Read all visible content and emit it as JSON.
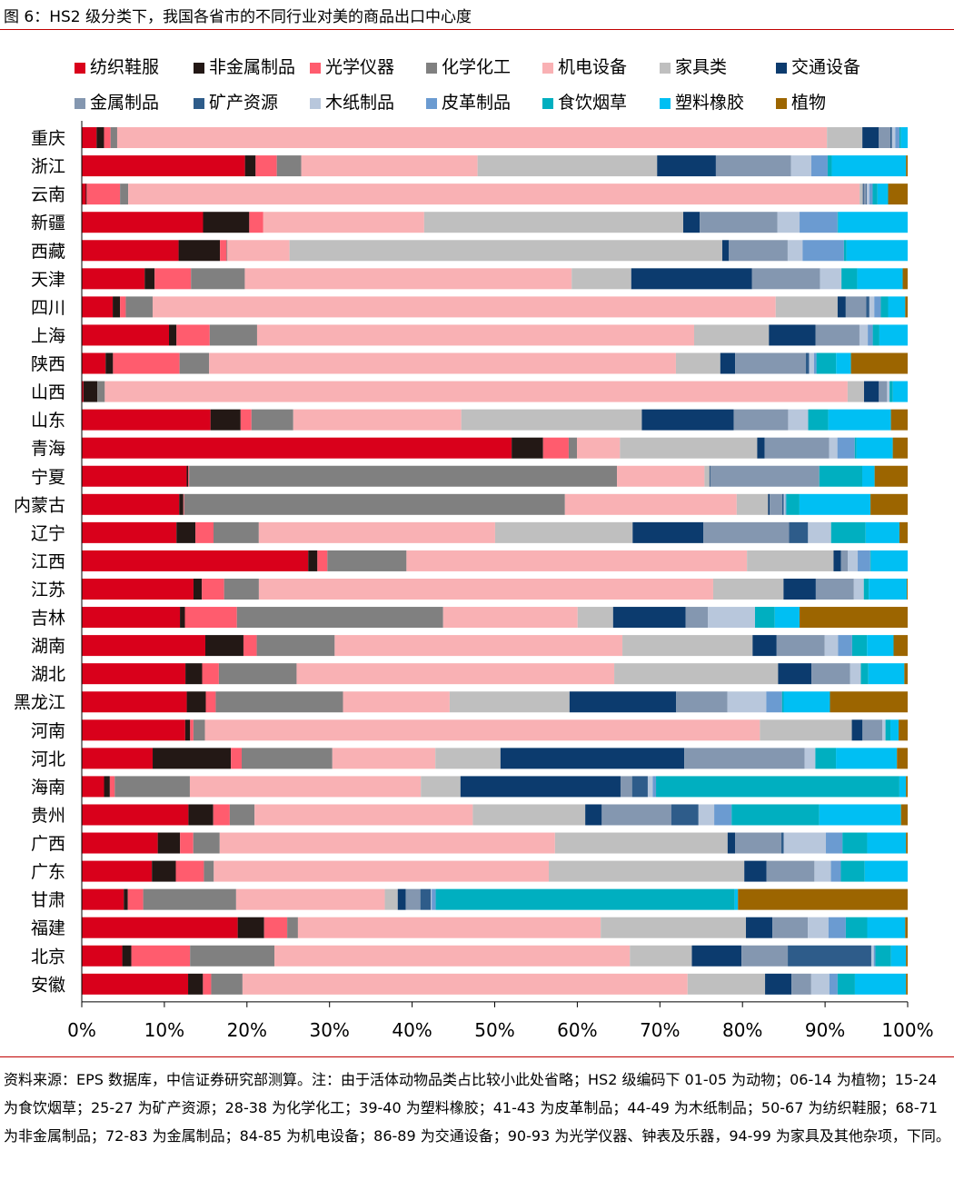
{
  "figure": {
    "title": "图 6：HS2 级分类下，我国各省市的不同行业对美的商品出口中心度",
    "source_note": "资料来源：EPS 数据库，中信证券研究部测算。注：由于活体动物品类占比较小此处省略；HS2 级编码下 01-05 为动物；06-14 为植物；15-24 为食饮烟草；25-27 为矿产资源；28-38 为化学化工；39-40 为塑料橡胶；41-43 为皮革制品；44-49 为木纸制品；50-67 为纺织鞋服；68-71 为非金属制品；72-83 为金属制品；84-85 为机电设备；86-89 为交通设备；90-93 为光学仪器、钟表及乐器，94-99 为家具及其他杂项，下同。"
  },
  "chart_data": {
    "type": "bar",
    "orientation": "horizontal",
    "stacked": true,
    "normalized": true,
    "xlim": [
      0,
      100
    ],
    "xticks": [
      "0%",
      "10%",
      "20%",
      "30%",
      "40%",
      "50%",
      "60%",
      "70%",
      "80%",
      "90%",
      "100%"
    ],
    "legend_position": "top",
    "categories": [
      "重庆",
      "浙江",
      "云南",
      "新疆",
      "西藏",
      "天津",
      "四川",
      "上海",
      "陕西",
      "山西",
      "山东",
      "青海",
      "宁夏",
      "内蒙古",
      "辽宁",
      "江西",
      "江苏",
      "吉林",
      "湖南",
      "湖北",
      "黑龙江",
      "河南",
      "河北",
      "海南",
      "贵州",
      "广西",
      "广东",
      "甘肃",
      "福建",
      "北京",
      "安徽"
    ],
    "series": [
      {
        "name": "纺织鞋服",
        "color": "#d9001b",
        "values": [
          1.8,
          20.0,
          0.5,
          14.7,
          11.7,
          7.6,
          3.8,
          10.5,
          2.9,
          0.2,
          15.4,
          52.0,
          12.7,
          11.8,
          11.5,
          27.2,
          13.5,
          11.9,
          14.9,
          12.4,
          12.7,
          12.6,
          8.6,
          2.7,
          12.9,
          9.2,
          8.5,
          5.2,
          18.9,
          4.9,
          12.9
        ]
      },
      {
        "name": "非金属制品",
        "color": "#231815",
        "values": [
          0.9,
          1.3,
          0.1,
          5.6,
          5.0,
          1.2,
          0.9,
          0.9,
          0.9,
          1.7,
          3.6,
          3.8,
          0.2,
          0.5,
          2.3,
          1.1,
          1.0,
          0.6,
          4.6,
          2.0,
          2.3,
          0.6,
          9.5,
          0.7,
          3.0,
          2.7,
          2.9,
          0.5,
          3.2,
          1.1,
          1.8
        ]
      },
      {
        "name": "光学仪器",
        "color": "#ff5c6e",
        "values": [
          0.8,
          2.6,
          4.1,
          1.7,
          0.8,
          4.4,
          0.7,
          4.0,
          8.1,
          0.0,
          1.3,
          3.1,
          0.1,
          0.1,
          2.2,
          1.2,
          2.7,
          6.3,
          1.6,
          2.0,
          1.2,
          0.4,
          1.3,
          0.6,
          2.0,
          1.6,
          3.4,
          1.9,
          2.8,
          7.1,
          1.0
        ]
      },
      {
        "name": "化学化工",
        "color": "#808080",
        "values": [
          0.8,
          3.0,
          1.0,
          0.0,
          0.1,
          6.5,
          3.3,
          5.7,
          3.6,
          0.9,
          5.0,
          1.0,
          51.8,
          46.1,
          5.5,
          9.5,
          4.2,
          25.0,
          9.4,
          9.3,
          15.4,
          1.4,
          11.0,
          9.1,
          3.0,
          3.2,
          1.2,
          11.5,
          1.3,
          10.2,
          3.8
        ]
      },
      {
        "name": "机电设备",
        "color": "#f9b1b4",
        "values": [
          86.2,
          21.6,
          89.8,
          19.5,
          7.5,
          39.5,
          76.5,
          52.6,
          56.8,
          90.3,
          20.1,
          5.2,
          10.6,
          20.8,
          28.7,
          40.9,
          54.9,
          16.3,
          34.7,
          38.0,
          12.9,
          67.6,
          12.5,
          28.0,
          26.4,
          40.6,
          40.6,
          18.4,
          36.7,
          43.0,
          54.0
        ]
      },
      {
        "name": "家具类",
        "color": "#bfbfbf",
        "values": [
          4.3,
          22.0,
          0.4,
          31.4,
          52.3,
          7.2,
          7.6,
          9.0,
          5.4,
          2.0,
          21.6,
          16.6,
          0.6,
          3.8,
          16.7,
          10.4,
          8.5,
          4.3,
          15.7,
          19.6,
          14.5,
          11.2,
          7.9,
          4.8,
          13.6,
          20.9,
          23.7,
          1.6,
          17.6,
          7.5,
          9.4
        ]
      },
      {
        "name": "交通设备",
        "color": "#0c3b6e",
        "values": [
          2.0,
          7.2,
          0.1,
          2.0,
          0.8,
          14.6,
          1.0,
          5.6,
          1.8,
          1.8,
          11.0,
          0.9,
          0.1,
          0.2,
          8.6,
          0.9,
          3.9,
          8.8,
          2.9,
          4.0,
          12.9,
          1.3,
          22.3,
          19.4,
          2.0,
          0.9,
          2.7,
          1.0,
          3.2,
          6.0,
          3.2
        ]
      },
      {
        "name": "金属制品",
        "color": "#8497b0",
        "values": [
          1.4,
          9.2,
          0.3,
          9.4,
          7.1,
          8.2,
          2.5,
          5.3,
          8.6,
          1.0,
          6.5,
          7.8,
          13.2,
          1.5,
          10.4,
          0.8,
          4.6,
          2.7,
          5.8,
          4.6,
          6.2,
          2.4,
          14.6,
          1.4,
          8.4,
          5.6,
          5.8,
          1.8,
          4.3,
          5.6,
          2.4
        ]
      },
      {
        "name": "矿产资源",
        "color": "#2e5c8a",
        "values": [
          0.2,
          0.0,
          0.1,
          0.0,
          0.0,
          0.0,
          0.4,
          0.0,
          0.4,
          0.0,
          0.0,
          0.0,
          0.0,
          0.2,
          2.3,
          0.0,
          0.0,
          0.0,
          0.0,
          0.0,
          0.0,
          0.0,
          0.0,
          1.9,
          3.3,
          0.3,
          0.0,
          1.3,
          0.0,
          10.1,
          0.0
        ]
      },
      {
        "name": "木纸制品",
        "color": "#b8c7dc",
        "values": [
          0.4,
          2.5,
          0.3,
          2.7,
          1.8,
          2.6,
          0.6,
          1.0,
          0.6,
          0.3,
          2.4,
          1.0,
          0.0,
          0.2,
          2.8,
          1.2,
          1.2,
          5.7,
          1.6,
          1.3,
          4.7,
          0.4,
          1.3,
          0.6,
          1.9,
          5.1,
          2.0,
          0.1,
          2.5,
          0.3,
          2.2
        ]
      },
      {
        "name": "皮革制品",
        "color": "#6b9bd1",
        "values": [
          0.5,
          2.0,
          0.4,
          4.6,
          5.0,
          0.0,
          0.8,
          0.6,
          0.3,
          0.0,
          0.0,
          2.1,
          0.0,
          0.1,
          0.0,
          1.5,
          0.0,
          0.0,
          1.7,
          0.0,
          1.9,
          0.0,
          0.0,
          0.4,
          2.1,
          2.0,
          1.2,
          0.5,
          2.1,
          0.2,
          1.0
        ]
      },
      {
        "name": "食饮烟草",
        "color": "#00afc0",
        "values": [
          0.2,
          0.5,
          0.6,
          0.1,
          0.3,
          1.9,
          0.9,
          0.8,
          2.4,
          0.4,
          2.4,
          0.2,
          5.2,
          1.6,
          4.2,
          0.1,
          0.6,
          2.4,
          1.8,
          0.9,
          0.2,
          0.6,
          2.5,
          29.5,
          10.6,
          3.0,
          2.9,
          37.0,
          2.6,
          1.9,
          2.1
        ]
      },
      {
        "name": "塑料橡胶",
        "color": "#00bff3",
        "values": [
          0.8,
          9.1,
          1.3,
          8.4,
          7.4,
          5.5,
          2.1,
          3.4,
          1.8,
          1.8,
          7.5,
          4.4,
          1.5,
          8.6,
          4.1,
          4.4,
          4.6,
          3.0,
          3.2,
          4.3,
          5.6,
          1.0,
          7.4,
          0.8,
          9.9,
          4.7,
          5.2,
          0.4,
          4.6,
          1.8,
          6.2
        ]
      },
      {
        "name": "植物",
        "color": "#9c6500",
        "values": [
          0.0,
          0.2,
          2.4,
          0.0,
          0.0,
          0.6,
          0.3,
          0.0,
          6.9,
          0.0,
          2.0,
          1.8,
          4.0,
          4.5,
          1.0,
          0.0,
          0.1,
          13.1,
          1.7,
          0.4,
          9.4,
          1.1,
          1.3,
          0.2,
          0.8,
          0.2,
          0.0,
          21.0,
          0.3,
          0.2,
          0.2
        ]
      }
    ]
  }
}
